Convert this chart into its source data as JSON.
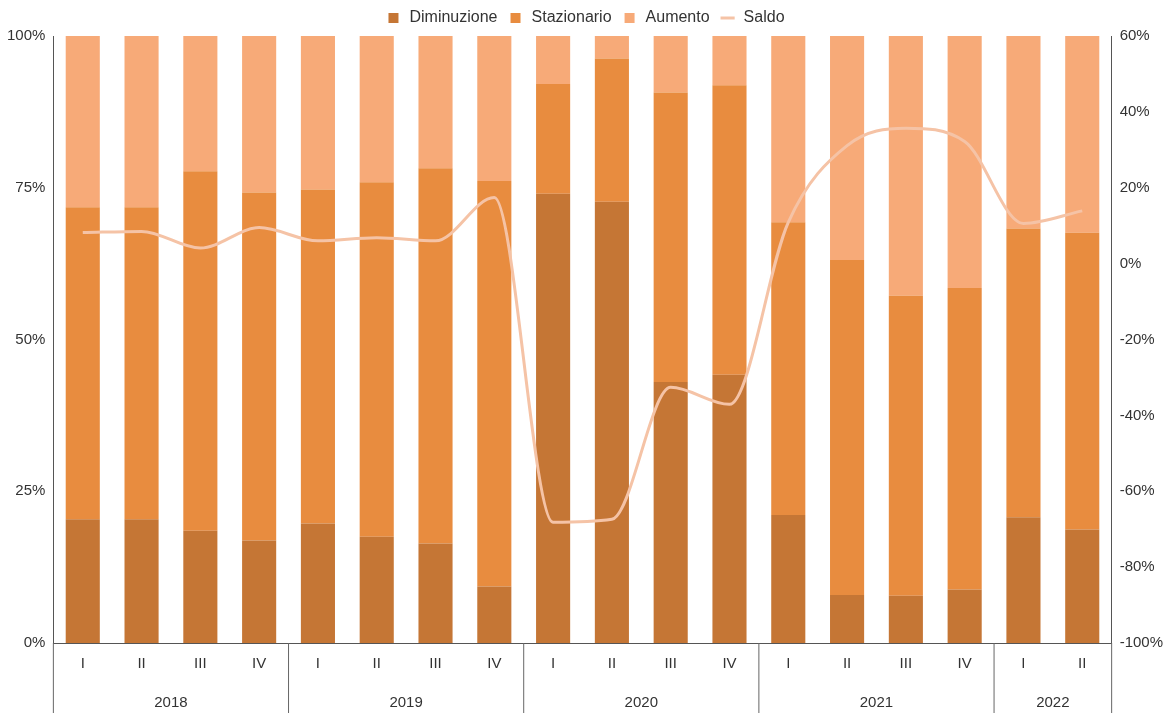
{
  "chart_data": {
    "type": "bar",
    "stacked": true,
    "legend": "top",
    "categories": [
      "I",
      "II",
      "III",
      "IV",
      "I",
      "II",
      "III",
      "IV",
      "I",
      "II",
      "III",
      "IV",
      "I",
      "II",
      "III",
      "IV",
      "I",
      "II"
    ],
    "annotations": [
      "2018",
      "2019",
      "2020",
      "2021",
      "2022"
    ],
    "ylim": [
      0,
      100
    ],
    "yticks": [
      {
        "value": 0,
        "label": "0%"
      },
      {
        "value": 25,
        "label": "25%"
      },
      {
        "value": 50,
        "label": "50%"
      },
      {
        "value": 75,
        "label": "75%"
      },
      {
        "value": 100,
        "label": "100%"
      }
    ],
    "y2lim": [
      -100,
      60
    ],
    "y2ticks": [
      {
        "value": -100,
        "label": "-100%"
      },
      {
        "value": -80,
        "label": "-80%"
      },
      {
        "value": -60,
        "label": "-60%"
      },
      {
        "value": -40,
        "label": "-40%"
      },
      {
        "value": -20,
        "label": "-20%"
      },
      {
        "value": 0,
        "label": "0%"
      },
      {
        "value": 20,
        "label": "20%"
      },
      {
        "value": 40,
        "label": "40%"
      },
      {
        "value": 60,
        "label": "60%"
      }
    ],
    "series": [
      {
        "name": "Diminuzione",
        "color": "#c57635",
        "values": [
          20.4,
          20.4,
          18.5,
          16.9,
          19.7,
          17.5,
          16.4,
          9.3,
          74.0,
          72.7,
          43.0,
          44.2,
          21.1,
          7.9,
          7.8,
          8.8,
          20.7,
          18.7
        ]
      },
      {
        "name": "Stazionario",
        "color": "#e88c3f",
        "values": [
          51.4,
          51.4,
          59.2,
          57.3,
          55.0,
          58.4,
          61.8,
          66.8,
          18.1,
          23.6,
          47.7,
          47.7,
          48.2,
          55.2,
          49.4,
          49.7,
          47.6,
          48.9
        ]
      },
      {
        "name": "Aumento",
        "color": "#f7aa78",
        "values": [
          28.2,
          28.2,
          22.3,
          25.8,
          25.3,
          24.1,
          21.8,
          23.9,
          7.9,
          3.7,
          9.3,
          8.1,
          30.7,
          36.9,
          42.8,
          41.5,
          31.7,
          32.4
        ]
      },
      {
        "name": "Saldo",
        "type": "line",
        "axis": "y2",
        "color": "#f5c3a6",
        "values": [
          8.2,
          8.5,
          4.1,
          9.5,
          6.0,
          6.8,
          6.0,
          17.4,
          -68.2,
          -67.4,
          -32.6,
          -37.1,
          10.9,
          31.1,
          35.7,
          32.2,
          10.6,
          13.9
        ]
      }
    ]
  }
}
